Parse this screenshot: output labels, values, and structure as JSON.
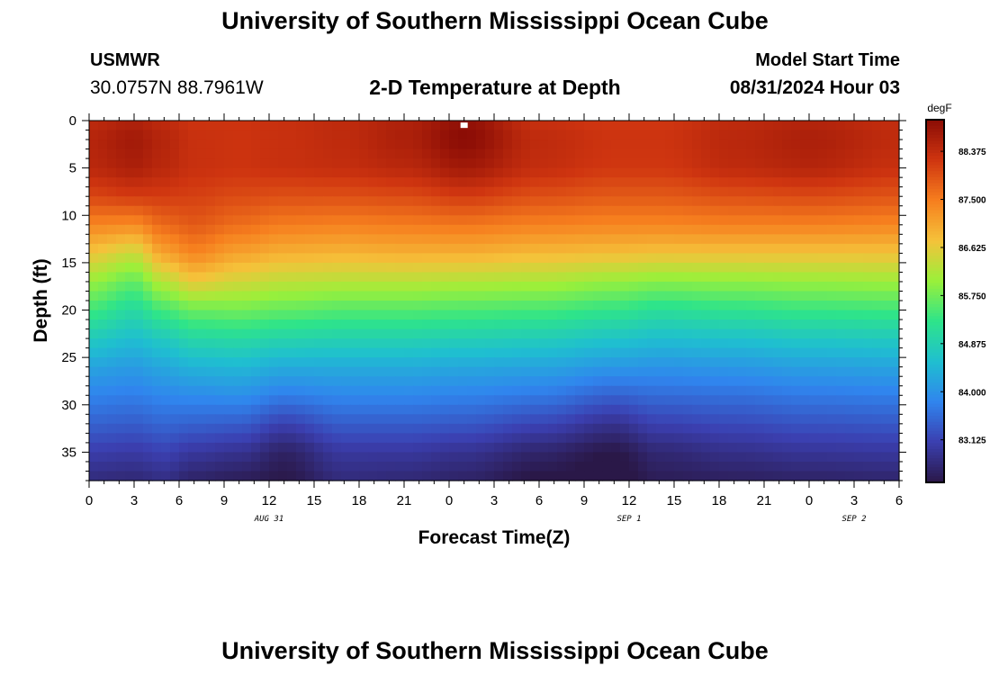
{
  "header": {
    "title": "University of Southern Mississippi Ocean Cube",
    "station": "USMWR",
    "coordinates": "30.0757N  88.7961W",
    "subtitle": "2-D Temperature at Depth",
    "model_start_label": "Model Start Time",
    "model_start_value": "08/31/2024 Hour 03"
  },
  "footer": {
    "title": "University of Southern Mississippi Ocean Cube"
  },
  "chart_data": {
    "type": "heatmap",
    "title": "2-D Temperature at Depth",
    "xlabel": "Forecast Time(Z)",
    "ylabel": "Depth (ft)",
    "x_tick_labels": [
      "0",
      "3",
      "6",
      "9",
      "12",
      "15",
      "18",
      "21",
      "0",
      "3",
      "6",
      "9",
      "12",
      "15",
      "18",
      "21",
      "0",
      "3",
      "6"
    ],
    "x_range_hours": [
      0,
      54
    ],
    "date_labels": [
      {
        "text": "AUG 31",
        "hour": 12
      },
      {
        "text": "SEP 1",
        "hour": 36
      },
      {
        "text": "SEP 2",
        "hour": 51
      }
    ],
    "y_ticks": [
      0,
      5,
      10,
      15,
      20,
      25,
      30,
      35
    ],
    "y_range_ft": [
      0,
      38
    ],
    "colorbar": {
      "unit": "degF",
      "min": 82.35,
      "max": 88.95,
      "ticks": [
        "88.375",
        "87.500",
        "86.625",
        "85.750",
        "84.875",
        "84.000",
        "83.125"
      ],
      "colors": [
        "#2a1848",
        "#3b3fb0",
        "#3085ee",
        "#1fbfd0",
        "#2ee48a",
        "#9af03a",
        "#f5c23a",
        "#f67e1e",
        "#cf3510",
        "#8a0c05"
      ]
    },
    "profile_depths_ft": [
      0,
      2,
      5,
      8,
      11,
      14,
      17,
      20,
      23,
      26,
      29,
      32,
      35,
      38
    ],
    "profiles": [
      {
        "hour": 0,
        "temps": [
          88.4,
          88.5,
          88.45,
          88.05,
          87.4,
          86.7,
          86.0,
          85.4,
          84.75,
          84.2,
          83.8,
          83.45,
          83.05,
          82.7
        ]
      },
      {
        "hour": 3,
        "temps": [
          88.55,
          88.7,
          88.6,
          88.15,
          87.35,
          86.4,
          85.65,
          85.05,
          84.55,
          84.1,
          83.75,
          83.4,
          83.0,
          82.65
        ]
      },
      {
        "hour": 5,
        "temps": [
          88.4,
          88.5,
          88.45,
          88.15,
          87.7,
          87.1,
          86.25,
          85.45,
          84.75,
          84.25,
          83.85,
          83.5,
          83.1,
          82.75
        ]
      },
      {
        "hour": 7,
        "temps": [
          88.25,
          88.3,
          88.3,
          88.1,
          87.85,
          87.4,
          86.65,
          85.7,
          85.0,
          84.4,
          83.9,
          83.45,
          82.95,
          82.55
        ]
      },
      {
        "hour": 10,
        "temps": [
          88.25,
          88.25,
          88.25,
          88.0,
          87.65,
          87.1,
          86.45,
          85.75,
          85.05,
          84.45,
          83.95,
          83.4,
          82.85,
          82.45
        ]
      },
      {
        "hour": 13,
        "temps": [
          88.3,
          88.3,
          88.3,
          87.95,
          87.5,
          86.95,
          86.3,
          85.65,
          84.95,
          84.3,
          83.75,
          83.1,
          82.55,
          82.35
        ]
      },
      {
        "hour": 17,
        "temps": [
          88.4,
          88.4,
          88.35,
          87.95,
          87.45,
          86.9,
          86.25,
          85.55,
          84.9,
          84.3,
          83.85,
          83.4,
          82.95,
          82.7
        ]
      },
      {
        "hour": 21,
        "temps": [
          88.55,
          88.6,
          88.45,
          88.0,
          87.5,
          86.95,
          86.25,
          85.55,
          84.9,
          84.3,
          83.85,
          83.4,
          82.95,
          82.65
        ]
      },
      {
        "hour": 25,
        "temps": [
          88.85,
          88.95,
          88.7,
          88.15,
          87.55,
          86.95,
          86.2,
          85.5,
          84.85,
          84.25,
          83.8,
          83.35,
          82.85,
          82.55
        ]
      },
      {
        "hour": 30,
        "temps": [
          88.3,
          88.4,
          88.35,
          87.95,
          87.45,
          86.85,
          86.15,
          85.45,
          84.8,
          84.2,
          83.7,
          83.15,
          82.6,
          82.3
        ]
      },
      {
        "hour": 35,
        "temps": [
          88.2,
          88.25,
          88.2,
          87.85,
          87.4,
          86.8,
          86.0,
          85.3,
          84.65,
          84.05,
          83.45,
          82.85,
          82.35,
          82.2
        ]
      },
      {
        "hour": 38,
        "temps": [
          88.2,
          88.25,
          88.2,
          87.85,
          87.4,
          86.75,
          85.9,
          85.15,
          84.55,
          84.0,
          83.55,
          83.1,
          82.65,
          82.45
        ]
      },
      {
        "hour": 43,
        "temps": [
          88.4,
          88.45,
          88.4,
          87.95,
          87.45,
          86.75,
          85.95,
          85.25,
          84.6,
          84.05,
          83.6,
          83.2,
          82.8,
          82.5
        ]
      },
      {
        "hour": 48,
        "temps": [
          88.5,
          88.6,
          88.5,
          88.0,
          87.45,
          86.75,
          86.0,
          85.35,
          84.7,
          84.15,
          83.7,
          83.3,
          82.9,
          82.55
        ]
      },
      {
        "hour": 54,
        "temps": [
          88.35,
          88.4,
          88.3,
          87.9,
          87.4,
          86.75,
          86.05,
          85.4,
          84.75,
          84.2,
          83.75,
          83.35,
          82.95,
          82.6
        ]
      }
    ],
    "marker": {
      "hour": 25,
      "depth_ft": 0.3
    }
  }
}
